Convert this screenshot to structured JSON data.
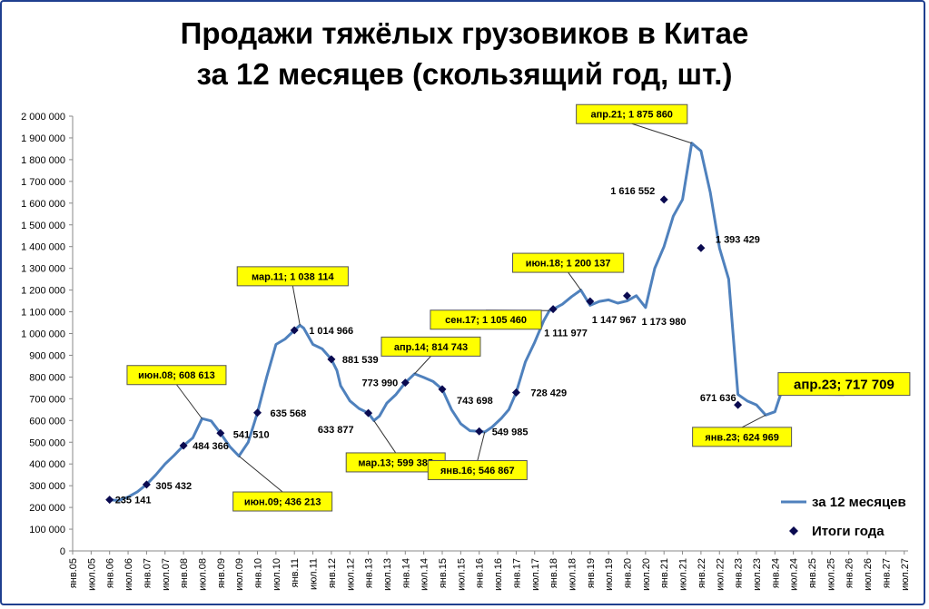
{
  "chart_data": {
    "type": "line",
    "title_line1": "Продажи тяжёлых грузовиков в Китае",
    "title_line2": "за 12 месяцев (скользящий год, шт.)",
    "xlabel": "",
    "ylabel": "",
    "ylim": [
      0,
      2000000
    ],
    "y_tick_step": 100000,
    "y_tick_labels": [
      "0",
      "100 000",
      "200 000",
      "300 000",
      "400 000",
      "500 000",
      "600 000",
      "700 000",
      "800 000",
      "900 000",
      "1 000 000",
      "1 100 000",
      "1 200 000",
      "1 300 000",
      "1 400 000",
      "1 500 000",
      "1 600 000",
      "1 700 000",
      "1 800 000",
      "1 900 000",
      "2 000 000"
    ],
    "x_tick_labels": [
      "янв.05",
      "июл.05",
      "янв.06",
      "июл.06",
      "янв.07",
      "июл.07",
      "янв.08",
      "июл.08",
      "янв.09",
      "июл.09",
      "янв.10",
      "июл.10",
      "янв.11",
      "июл.11",
      "янв.12",
      "июл.12",
      "янв.13",
      "июл.13",
      "янв.14",
      "июл.14",
      "янв.15",
      "июл.15",
      "янв.16",
      "июл.16",
      "янв.17",
      "июл.17",
      "янв.18",
      "июл.18",
      "янв.19",
      "июл.19",
      "янв.20",
      "июл.20",
      "янв.21",
      "июл.21",
      "янв.22",
      "июл.22",
      "янв.23",
      "июл.23",
      "янв.24",
      "июл.24",
      "янв.25",
      "июл.25",
      "янв.26",
      "июл.26",
      "янв.27",
      "июл.27"
    ],
    "grid": false,
    "legend_position": "bottom-right",
    "series": [
      {
        "name": "за 12 месяцев",
        "color": "#4f81bd",
        "points": [
          [
            2.0,
            235141
          ],
          [
            2.5,
            232000
          ],
          [
            3.0,
            248000
          ],
          [
            3.5,
            272000
          ],
          [
            4.0,
            305432
          ],
          [
            4.5,
            350000
          ],
          [
            5.0,
            400000
          ],
          [
            5.5,
            440000
          ],
          [
            6.0,
            484366
          ],
          [
            6.5,
            520000
          ],
          [
            7.0,
            608613
          ],
          [
            7.5,
            598000
          ],
          [
            8.0,
            541510
          ],
          [
            8.5,
            480000
          ],
          [
            9.0,
            436213
          ],
          [
            9.5,
            500000
          ],
          [
            10.0,
            635568
          ],
          [
            10.5,
            800000
          ],
          [
            11.0,
            950000
          ],
          [
            11.5,
            975000
          ],
          [
            12.0,
            1014966
          ],
          [
            12.3,
            1038114
          ],
          [
            12.5,
            1025000
          ],
          [
            13.0,
            950000
          ],
          [
            13.5,
            930000
          ],
          [
            14.0,
            881539
          ],
          [
            14.3,
            830000
          ],
          [
            14.5,
            760000
          ],
          [
            15.0,
            690000
          ],
          [
            15.5,
            655000
          ],
          [
            16.0,
            633877
          ],
          [
            16.3,
            599385
          ],
          [
            16.6,
            620000
          ],
          [
            17.0,
            680000
          ],
          [
            17.5,
            720000
          ],
          [
            18.0,
            773990
          ],
          [
            18.5,
            814743
          ],
          [
            19.0,
            798000
          ],
          [
            19.5,
            780000
          ],
          [
            20.0,
            743698
          ],
          [
            20.5,
            650000
          ],
          [
            21.0,
            585000
          ],
          [
            21.5,
            553000
          ],
          [
            22.0,
            549985
          ],
          [
            22.3,
            546867
          ],
          [
            22.7,
            570000
          ],
          [
            23.2,
            610000
          ],
          [
            23.6,
            650000
          ],
          [
            24.0,
            728429
          ],
          [
            24.5,
            870000
          ],
          [
            25.0,
            960000
          ],
          [
            25.5,
            1060000
          ],
          [
            25.8,
            1105460
          ],
          [
            26.0,
            1111977
          ],
          [
            26.5,
            1135000
          ],
          [
            27.0,
            1170000
          ],
          [
            27.5,
            1200137
          ],
          [
            28.0,
            1130000
          ],
          [
            28.5,
            1147967
          ],
          [
            29.0,
            1155000
          ],
          [
            29.5,
            1140000
          ],
          [
            30.0,
            1150000
          ],
          [
            30.5,
            1173980
          ],
          [
            31.0,
            1120000
          ],
          [
            31.5,
            1300000
          ],
          [
            32.0,
            1400000
          ],
          [
            32.5,
            1540000
          ],
          [
            33.0,
            1616552
          ],
          [
            33.5,
            1875860
          ],
          [
            34.0,
            1840000
          ],
          [
            34.5,
            1650000
          ],
          [
            35.0,
            1393429
          ],
          [
            35.5,
            1250000
          ],
          [
            36.0,
            720000
          ],
          [
            36.5,
            690000
          ],
          [
            37.0,
            671636
          ],
          [
            37.5,
            624969
          ],
          [
            38.0,
            640000
          ],
          [
            38.3,
            717709
          ]
        ]
      },
      {
        "name": "Итоги года",
        "color": "#0a0a50",
        "points": [
          [
            2.0,
            235141
          ],
          [
            4.0,
            305432
          ],
          [
            6.0,
            484366
          ],
          [
            8.0,
            541510
          ],
          [
            10.0,
            635568
          ],
          [
            12.0,
            1014966
          ],
          [
            14.0,
            881539
          ],
          [
            16.0,
            633877
          ],
          [
            18.0,
            773990
          ],
          [
            20.0,
            743698
          ],
          [
            22.0,
            549985
          ],
          [
            24.0,
            728429
          ],
          [
            26.0,
            1111977
          ],
          [
            28.0,
            1147967
          ],
          [
            30.0,
            1173980
          ],
          [
            32.0,
            1616552
          ],
          [
            34.0,
            1393429
          ],
          [
            36.0,
            671636
          ]
        ]
      }
    ],
    "year_labels": [
      {
        "x": 2.0,
        "y": 235141,
        "text": "235 141"
      },
      {
        "x": 4.0,
        "y": 305432,
        "text": "305 432"
      },
      {
        "x": 6.0,
        "y": 484366,
        "text": "484 366"
      },
      {
        "x": 8.0,
        "y": 541510,
        "text": "541 510"
      },
      {
        "x": 10.0,
        "y": 635568,
        "text": "635 568"
      },
      {
        "x": 12.0,
        "y": 1014966,
        "text": "1 014 966"
      },
      {
        "x": 14.0,
        "y": 881539,
        "text": "881 539"
      },
      {
        "x": 16.0,
        "y": 633877,
        "text": "633 877"
      },
      {
        "x": 18.0,
        "y": 773990,
        "text": "773 990"
      },
      {
        "x": 20.0,
        "y": 743698,
        "text": "743 698"
      },
      {
        "x": 22.0,
        "y": 549985,
        "text": "549 985"
      },
      {
        "x": 24.0,
        "y": 728429,
        "text": "728 429"
      },
      {
        "x": 26.0,
        "y": 1111977,
        "text": "1 111 977"
      },
      {
        "x": 28.0,
        "y": 1147967,
        "text": "1 147 967"
      },
      {
        "x": 30.0,
        "y": 1173980,
        "text": "1 173 980"
      },
      {
        "x": 32.0,
        "y": 1616552,
        "text": "1 616 552"
      },
      {
        "x": 34.0,
        "y": 1393429,
        "text": "1 393 429"
      },
      {
        "x": 36.0,
        "y": 671636,
        "text": "671 636"
      }
    ],
    "callouts": [
      {
        "x": 7.0,
        "y": 608613,
        "text": "июн.08; 608 613"
      },
      {
        "x": 9.0,
        "y": 436213,
        "text": "июн.09; 436 213"
      },
      {
        "x": 12.3,
        "y": 1038114,
        "text": "мар.11; 1 038 114"
      },
      {
        "x": 16.3,
        "y": 599385,
        "text": "мар.13; 599 385"
      },
      {
        "x": 18.5,
        "y": 814743,
        "text": "апр.14; 814 743"
      },
      {
        "x": 22.3,
        "y": 546867,
        "text": "янв.16; 546 867"
      },
      {
        "x": 25.8,
        "y": 1105460,
        "text": "сен.17; 1 105 460"
      },
      {
        "x": 27.5,
        "y": 1200137,
        "text": "июн.18; 1 200 137"
      },
      {
        "x": 33.5,
        "y": 1875860,
        "text": "апр.21; 1 875 860"
      },
      {
        "x": 37.5,
        "y": 624969,
        "text": "янв.23; 624 969"
      },
      {
        "x": 38.3,
        "y": 717709,
        "text": "апр.23; 717 709"
      }
    ],
    "legend": [
      {
        "label": "за 12 месяцев",
        "kind": "line"
      },
      {
        "label": "Итоги года",
        "kind": "marker"
      }
    ]
  }
}
